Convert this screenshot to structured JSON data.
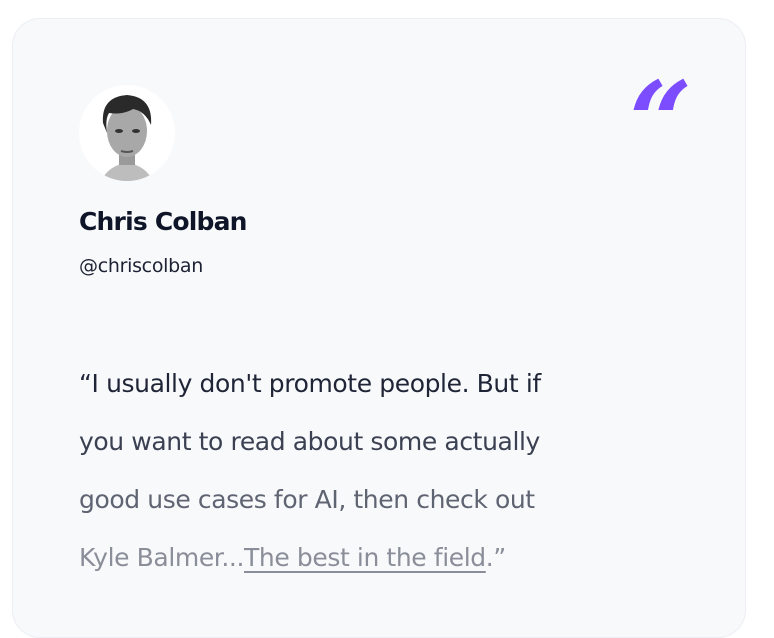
{
  "testimonial": {
    "name": "Chris Colban",
    "handle": "@chriscolban",
    "quote_icon": "quote-mark-icon",
    "accent_color": "#7c4dff",
    "quote_lines": [
      "“I usually don't promote people. But if",
      "you want to read about some actually",
      "good use cases for AI, then check out",
      "Kyle Balmer..."
    ],
    "link_text": "The best in the field",
    "quote_end": ".”"
  }
}
